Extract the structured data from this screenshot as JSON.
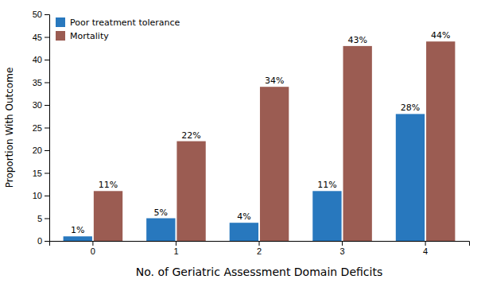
{
  "chart_data": {
    "type": "bar",
    "categories": [
      "0",
      "1",
      "2",
      "3",
      "4"
    ],
    "series": [
      {
        "name": "Poor treatment tolerance",
        "color": "#2878BE",
        "values": [
          1,
          5,
          4,
          11,
          28
        ],
        "value_labels": [
          "1%",
          "5%",
          "4%",
          "11%",
          "28%"
        ]
      },
      {
        "name": "Mortality",
        "color": "#9B5C52",
        "values": [
          11,
          22,
          34,
          43,
          44
        ],
        "value_labels": [
          "11%",
          "22%",
          "34%",
          "43%",
          "44%"
        ]
      }
    ],
    "xlabel": "No. of Geriatric Assessment Domain Deficits",
    "ylabel": "Proportion With Outcome",
    "ylim": [
      0,
      50
    ],
    "yticks": [
      0,
      5,
      10,
      15,
      20,
      25,
      30,
      35,
      40,
      45,
      50
    ],
    "grid": false,
    "legend": "upper left",
    "data_labels": true
  }
}
